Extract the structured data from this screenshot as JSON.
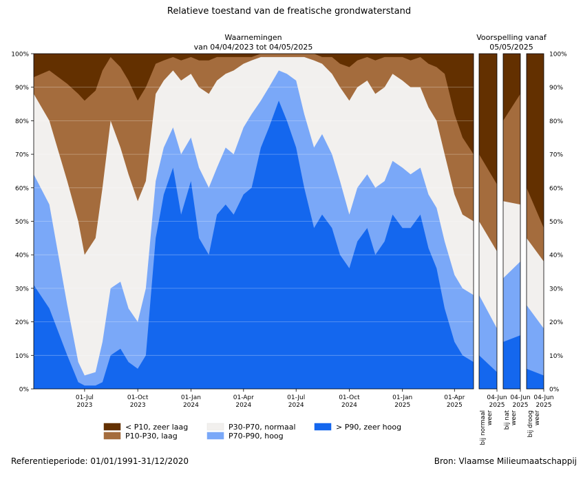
{
  "title": "Relatieve toestand van de freatische grondwaterstand",
  "observations_header_line1": "Waarnemingen",
  "observations_header_line2": "van 04/04/2023 tot 04/05/2025",
  "forecast_header_line1": "Voorspelling vanaf",
  "forecast_header_line2": "05/05/2025",
  "reference_period": "Referentieperiode: 01/01/1991-31/12/2020",
  "source": "Bron: Vlaamse Milieumaatschappij",
  "legend": [
    {
      "label": "< P10, zeer laag",
      "color": "#633000"
    },
    {
      "label": "P10-P30, laag",
      "color": "#a46c3d"
    },
    {
      "label": "P30-P70, normaal",
      "color": "#f2f0ee"
    },
    {
      "label": "P70-P90, hoog",
      "color": "#7aa8f8"
    },
    {
      "label": "> P90, zeer hoog",
      "color": "#1467ee"
    }
  ],
  "chart_data": [
    {
      "type": "area",
      "stacked": true,
      "title": "Waarnemingen van 04/04/2023 tot 04/05/2025",
      "ylim": [
        0,
        100
      ],
      "yticks": [
        "0%",
        "10%",
        "20%",
        "30%",
        "40%",
        "50%",
        "60%",
        "70%",
        "80%",
        "90%",
        "100%"
      ],
      "x_tick_labels": [
        {
          "date": "2023-07-01",
          "line1": "01-Jul",
          "line2": "2023"
        },
        {
          "date": "2023-10-01",
          "line1": "01-Oct",
          "line2": "2023"
        },
        {
          "date": "2024-01-01",
          "line1": "01-Jan",
          "line2": "2024"
        },
        {
          "date": "2024-04-01",
          "line1": "01-Apr",
          "line2": "2024"
        },
        {
          "date": "2024-07-01",
          "line1": "01-Jul",
          "line2": "2024"
        },
        {
          "date": "2024-10-01",
          "line1": "01-Oct",
          "line2": "2024"
        },
        {
          "date": "2025-01-01",
          "line1": "01-Jan",
          "line2": "2025"
        },
        {
          "date": "2025-04-01",
          "line1": "01-Apr",
          "line2": "2025"
        }
      ],
      "xlim": [
        "2023-04-04",
        "2025-05-04"
      ],
      "note_values": "cumulative % of stations at or below each class boundary (top of P90+, P70-P90, P30-P70, P10-P30 bands)",
      "x": [
        "2023-04-04",
        "2023-05-01",
        "2023-06-01",
        "2023-06-20",
        "2023-07-01",
        "2023-07-20",
        "2023-08-01",
        "2023-08-15",
        "2023-09-01",
        "2023-09-15",
        "2023-10-01",
        "2023-10-15",
        "2023-11-01",
        "2023-11-15",
        "2023-12-01",
        "2023-12-15",
        "2024-01-01",
        "2024-01-15",
        "2024-02-01",
        "2024-02-15",
        "2024-03-01",
        "2024-03-15",
        "2024-04-01",
        "2024-04-15",
        "2024-05-01",
        "2024-05-15",
        "2024-06-01",
        "2024-06-15",
        "2024-07-01",
        "2024-07-15",
        "2024-08-01",
        "2024-08-15",
        "2024-09-01",
        "2024-09-15",
        "2024-10-01",
        "2024-10-15",
        "2024-11-01",
        "2024-11-15",
        "2024-12-01",
        "2024-12-15",
        "2025-01-01",
        "2025-01-15",
        "2025-02-01",
        "2025-02-15",
        "2025-03-01",
        "2025-03-15",
        "2025-04-01",
        "2025-04-15",
        "2025-05-04"
      ],
      "series": [
        {
          "name": "> P90, zeer hoog",
          "values": [
            31,
            24,
            10,
            2,
            1,
            1,
            2,
            10,
            12,
            8,
            6,
            10,
            45,
            58,
            66,
            52,
            62,
            45,
            40,
            52,
            55,
            52,
            58,
            60,
            72,
            78,
            86,
            80,
            72,
            60,
            48,
            52,
            48,
            40,
            36,
            44,
            48,
            40,
            44,
            52,
            48,
            48,
            52,
            42,
            36,
            24,
            14,
            10,
            8
          ]
        },
        {
          "name": "P70-P90, hoog",
          "values": [
            64,
            55,
            25,
            8,
            4,
            5,
            14,
            30,
            32,
            24,
            20,
            30,
            62,
            72,
            78,
            70,
            75,
            66,
            60,
            66,
            72,
            70,
            78,
            82,
            86,
            90,
            95,
            94,
            92,
            82,
            72,
            76,
            70,
            62,
            52,
            60,
            64,
            60,
            62,
            68,
            66,
            64,
            66,
            58,
            54,
            44,
            34,
            30,
            28
          ]
        },
        {
          "name": "P30-P70, normaal",
          "values": [
            88,
            80,
            62,
            50,
            40,
            45,
            60,
            80,
            72,
            64,
            56,
            62,
            88,
            92,
            95,
            92,
            94,
            90,
            88,
            92,
            94,
            95,
            97,
            98,
            99,
            99,
            99,
            99,
            99,
            99,
            98,
            97,
            94,
            90,
            86,
            90,
            92,
            88,
            90,
            94,
            92,
            90,
            90,
            84,
            80,
            70,
            58,
            52,
            50
          ]
        },
        {
          "name": "P10-P30, laag",
          "values": [
            93,
            95,
            91,
            88,
            86,
            89,
            95,
            99,
            96,
            92,
            86,
            90,
            97,
            98,
            99,
            98,
            99,
            98,
            98,
            99,
            99,
            99,
            99,
            99,
            100,
            100,
            100,
            100,
            100,
            100,
            100,
            99,
            99,
            97,
            96,
            98,
            99,
            98,
            99,
            99,
            99,
            98,
            99,
            97,
            96,
            94,
            82,
            75,
            70
          ]
        }
      ]
    },
    {
      "type": "area",
      "stacked": true,
      "title": "bij normaal weer",
      "x_tick_label": {
        "line1": "04-Jun",
        "line2": "2025"
      },
      "ylim": [
        0,
        100
      ],
      "series": [
        {
          "name": "> P90, zeer hoog",
          "values": [
            10,
            5
          ]
        },
        {
          "name": "P70-P90, hoog",
          "values": [
            28,
            18
          ]
        },
        {
          "name": "P30-P70, normaal",
          "values": [
            50,
            41
          ]
        },
        {
          "name": "P10-P30, laag",
          "values": [
            70,
            61
          ]
        }
      ]
    },
    {
      "type": "area",
      "stacked": true,
      "title": "bij nat weer",
      "x_tick_label": {
        "line1": "04-Jun",
        "line2": "2025"
      },
      "ylim": [
        0,
        100
      ],
      "series": [
        {
          "name": "> P90, zeer hoog",
          "values": [
            14,
            16
          ]
        },
        {
          "name": "P70-P90, hoog",
          "values": [
            33,
            38
          ]
        },
        {
          "name": "P30-P70, normaal",
          "values": [
            56,
            55
          ]
        },
        {
          "name": "P10-P30, laag",
          "values": [
            80,
            88
          ]
        }
      ]
    },
    {
      "type": "area",
      "stacked": true,
      "title": "bij droog weer",
      "x_tick_label": {
        "line1": "04-Jun",
        "line2": "2025"
      },
      "ylim": [
        0,
        100
      ],
      "series": [
        {
          "name": "> P90, zeer hoog",
          "values": [
            6,
            4
          ]
        },
        {
          "name": "P70-P90, hoog",
          "values": [
            25,
            18
          ]
        },
        {
          "name": "P30-P70, normaal",
          "values": [
            45,
            38
          ]
        },
        {
          "name": "P10-P30, laag",
          "values": [
            60,
            48
          ]
        }
      ]
    }
  ]
}
